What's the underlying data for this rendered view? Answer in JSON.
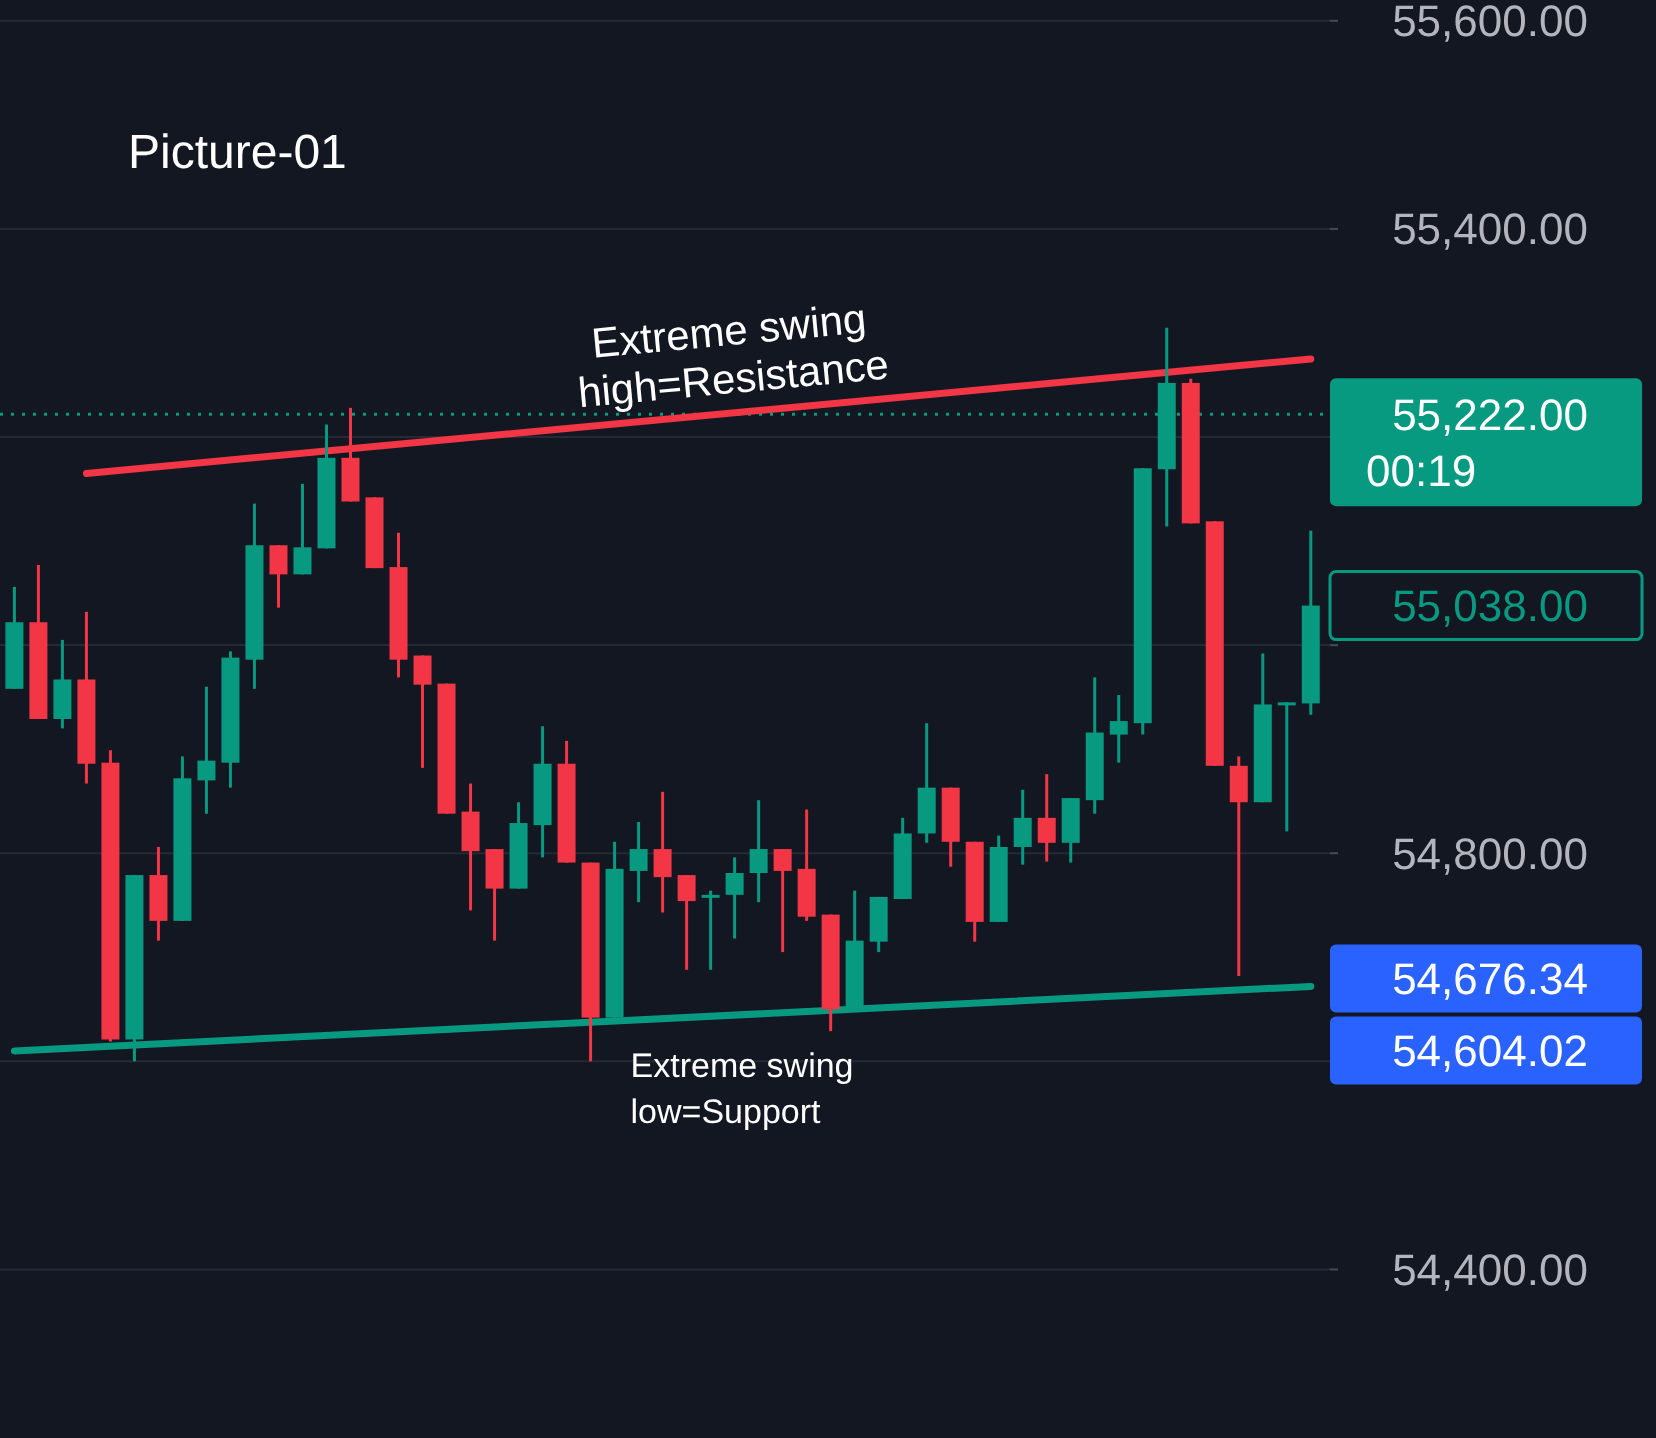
{
  "chart_data": {
    "type": "candlestick",
    "title": "Picture-01",
    "categories": [
      null,
      null,
      null,
      null,
      null,
      null,
      null,
      null,
      null,
      null,
      null,
      null,
      null,
      null,
      null,
      null,
      null,
      null,
      null,
      null,
      null,
      null,
      null,
      null,
      null,
      null,
      null,
      null,
      null,
      null,
      null,
      null,
      null,
      null,
      null,
      null,
      null,
      null,
      null,
      null,
      null,
      null,
      null,
      null,
      null,
      null,
      null,
      null,
      null,
      null,
      null,
      null,
      null,
      null,
      null
    ],
    "ohlc": [
      [
        54958,
        55056,
        54958,
        55022
      ],
      [
        55022,
        55077,
        54929,
        54929
      ],
      [
        54929,
        55005,
        54920,
        54967
      ],
      [
        54967,
        55032,
        54867,
        54886
      ],
      [
        54887,
        54899,
        54619,
        54621
      ],
      [
        54621,
        54779,
        54600,
        54779
      ],
      [
        54779,
        54806,
        54716,
        54735
      ],
      [
        54735,
        54893,
        54735,
        54872
      ],
      [
        54870,
        54960,
        54838,
        54889
      ],
      [
        54887,
        54994,
        54863,
        54988
      ],
      [
        54986,
        55136,
        54958,
        55096
      ],
      [
        55096,
        55096,
        55036,
        55068
      ],
      [
        55068,
        55155,
        55068,
        55094
      ],
      [
        55093,
        55212,
        55093,
        55180
      ],
      [
        55180,
        55228,
        55138,
        55138
      ],
      [
        55142,
        55142,
        55074,
        55074
      ],
      [
        55075,
        55108,
        54969,
        54986
      ],
      [
        54990,
        54990,
        54882,
        54962
      ],
      [
        54963,
        54963,
        54838,
        54838
      ],
      [
        54840,
        54867,
        54745,
        54802
      ],
      [
        54804,
        54804,
        54716,
        54766
      ],
      [
        54766,
        54849,
        54766,
        54829
      ],
      [
        54827,
        54922,
        54796,
        54886
      ],
      [
        54886,
        54908,
        54791,
        54791
      ],
      [
        54791,
        54791,
        54600,
        54642
      ],
      [
        54642,
        54811,
        54642,
        54785
      ],
      [
        54783,
        54830,
        54753,
        54804
      ],
      [
        54804,
        54859,
        54743,
        54777
      ],
      [
        54779,
        54779,
        54688,
        54754
      ],
      [
        54758,
        54764,
        54688,
        54760
      ],
      [
        54760,
        54796,
        54718,
        54781
      ],
      [
        54781,
        54851,
        54753,
        54804
      ],
      [
        54804,
        54804,
        54705,
        54783
      ],
      [
        54785,
        54842,
        54735,
        54739
      ],
      [
        54741,
        54741,
        54629,
        54650
      ],
      [
        54650,
        54764,
        54650,
        54716
      ],
      [
        54715,
        54758,
        54705,
        54758
      ],
      [
        54756,
        54834,
        54756,
        54819
      ],
      [
        54819,
        54925,
        54810,
        54863
      ],
      [
        54863,
        54863,
        54787,
        54811
      ],
      [
        54811,
        54811,
        54715,
        54734
      ],
      [
        54734,
        54817,
        54734,
        54806
      ],
      [
        54806,
        54861,
        54789,
        54834
      ],
      [
        54834,
        54876,
        54792,
        54810
      ],
      [
        54810,
        54853,
        54791,
        54853
      ],
      [
        54851,
        54969,
        54838,
        54916
      ],
      [
        54914,
        54952,
        54887,
        54927
      ],
      [
        54925,
        55170,
        54914,
        55170
      ],
      [
        55169,
        55305,
        55114,
        55252
      ],
      [
        55252,
        55256,
        55117,
        55117
      ],
      [
        55119,
        55119,
        54884,
        54884
      ],
      [
        54884,
        54893,
        54682,
        54849
      ],
      [
        54849,
        54992,
        54849,
        54943
      ],
      [
        54943,
        54945,
        54821,
        54945
      ],
      [
        54944,
        55110,
        54933,
        55038
      ]
    ],
    "colors": [
      "#089981",
      "#f23645",
      "#089981",
      "#f23645",
      "#f23645",
      "#089981",
      "#f23645",
      "#089981",
      "#089981",
      "#089981",
      "#089981",
      "#f23645",
      "#089981",
      "#089981",
      "#f23645",
      "#f23645",
      "#f23645",
      "#f23645",
      "#f23645",
      "#f23645",
      "#f23645",
      "#089981",
      "#089981",
      "#f23645",
      "#f23645",
      "#089981",
      "#089981",
      "#f23645",
      "#f23645",
      "#089981",
      "#089981",
      "#089981",
      "#f23645",
      "#f23645",
      "#f23645",
      "#089981",
      "#089981",
      "#089981",
      "#089981",
      "#f23645",
      "#f23645",
      "#089981",
      "#089981",
      "#f23645",
      "#089981",
      "#089981",
      "#089981",
      "#089981",
      "#089981",
      "#f23645",
      "#f23645",
      "#f23645",
      "#089981",
      "#089981",
      "#089981"
    ],
    "series": [
      {
        "type": "line",
        "color": "#f23645",
        "values": [
          null,
          null,
          null,
          55165,
          null,
          null,
          null,
          null,
          null,
          null,
          null,
          null,
          null,
          null,
          null,
          null,
          null,
          null,
          null,
          null,
          null,
          null,
          null,
          null,
          null,
          null,
          null,
          null,
          null,
          null,
          null,
          null,
          null,
          null,
          null,
          null,
          null,
          null,
          null,
          null,
          null,
          null,
          null,
          null,
          null,
          null,
          null,
          null,
          null,
          null,
          null,
          null,
          null,
          null,
          55275
        ]
      },
      {
        "type": "line",
        "color": "#089981",
        "values": [
          54610,
          null,
          null,
          null,
          null,
          null,
          null,
          null,
          null,
          null,
          null,
          null,
          null,
          null,
          null,
          null,
          null,
          null,
          null,
          null,
          null,
          null,
          null,
          null,
          null,
          null,
          null,
          null,
          null,
          null,
          null,
          null,
          null,
          null,
          null,
          null,
          null,
          null,
          null,
          null,
          null,
          null,
          null,
          null,
          null,
          null,
          null,
          null,
          null,
          null,
          null,
          null,
          null,
          null,
          54672
        ]
      }
    ],
    "ylim": [
      54238,
      55620
    ],
    "yticks": [
      {
        "value": 54400,
        "label": "54,400.00"
      },
      {
        "value": 54600,
        "label": null
      },
      {
        "value": 54800,
        "label": "54,800.00"
      },
      {
        "value": 55000,
        "label": null
      },
      {
        "value": 55200,
        "label": null
      },
      {
        "value": 55400,
        "label": "55,400.00"
      },
      {
        "value": 55600,
        "label": "55,600.00"
      }
    ],
    "grid": "y",
    "ref_lines": [
      {
        "axis": "y",
        "value": 55222,
        "label": "55,222.00",
        "color": "#089981",
        "line_style": "dotted"
      }
    ],
    "annotations": [
      "Extreme swing high=Resistance",
      "Extreme swing low=Support",
      "00:19",
      "55,038.00",
      "54,676.34",
      "54,604.02"
    ]
  }
}
